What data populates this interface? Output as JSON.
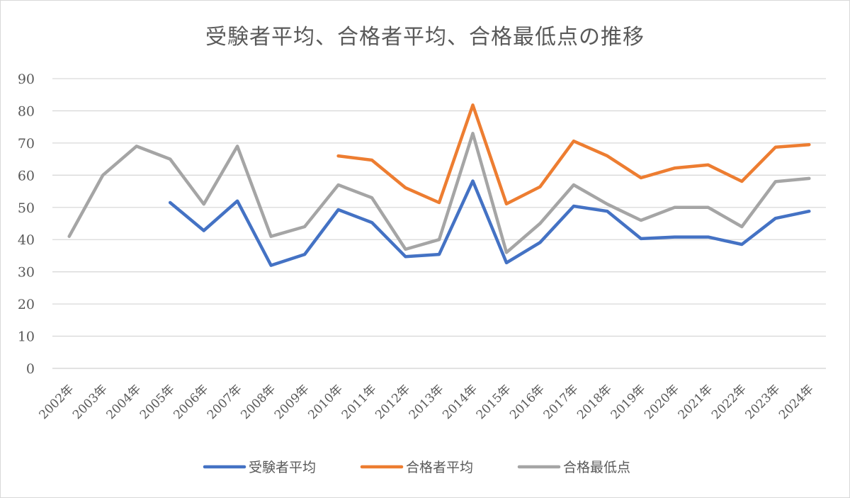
{
  "chart_data": {
    "type": "line",
    "title": "受験者平均、合格者平均、合格最低点の推移",
    "xlabel": "",
    "ylabel": "",
    "ylim": [
      0,
      90
    ],
    "yticks": [
      0,
      10,
      20,
      30,
      40,
      50,
      60,
      70,
      80,
      90
    ],
    "grid": true,
    "legend_position": "bottom",
    "categories": [
      "2002年",
      "2003年",
      "2004年",
      "2005年",
      "2006年",
      "2007年",
      "2008年",
      "2009年",
      "2010年",
      "2011年",
      "2012年",
      "2013年",
      "2014年",
      "2015年",
      "2016年",
      "2017年",
      "2018年",
      "2019年",
      "2020年",
      "2021年",
      "2022年",
      "2023年",
      "2024年"
    ],
    "series": [
      {
        "name": "受験者平均",
        "color": "#4472c4",
        "values": [
          null,
          null,
          null,
          51.5,
          42.8,
          52.0,
          32.0,
          35.4,
          49.3,
          45.3,
          34.7,
          35.4,
          58.2,
          32.8,
          39.1,
          50.4,
          48.8,
          40.3,
          40.8,
          40.8,
          38.5,
          46.6,
          48.8
        ]
      },
      {
        "name": "合格者平均",
        "color": "#ed7d31",
        "values": [
          null,
          null,
          null,
          null,
          null,
          null,
          null,
          null,
          66.0,
          64.7,
          56.1,
          51.5,
          81.8,
          51.1,
          56.4,
          70.6,
          66.0,
          59.2,
          62.2,
          63.2,
          58.1,
          68.7,
          69.5
        ]
      },
      {
        "name": "合格最低点",
        "color": "#a5a5a5",
        "values": [
          41,
          60,
          69,
          65,
          51,
          69,
          41,
          44,
          57,
          53,
          37,
          40,
          73,
          36,
          45,
          57,
          51,
          46,
          50,
          50,
          44,
          58,
          59
        ]
      }
    ]
  }
}
